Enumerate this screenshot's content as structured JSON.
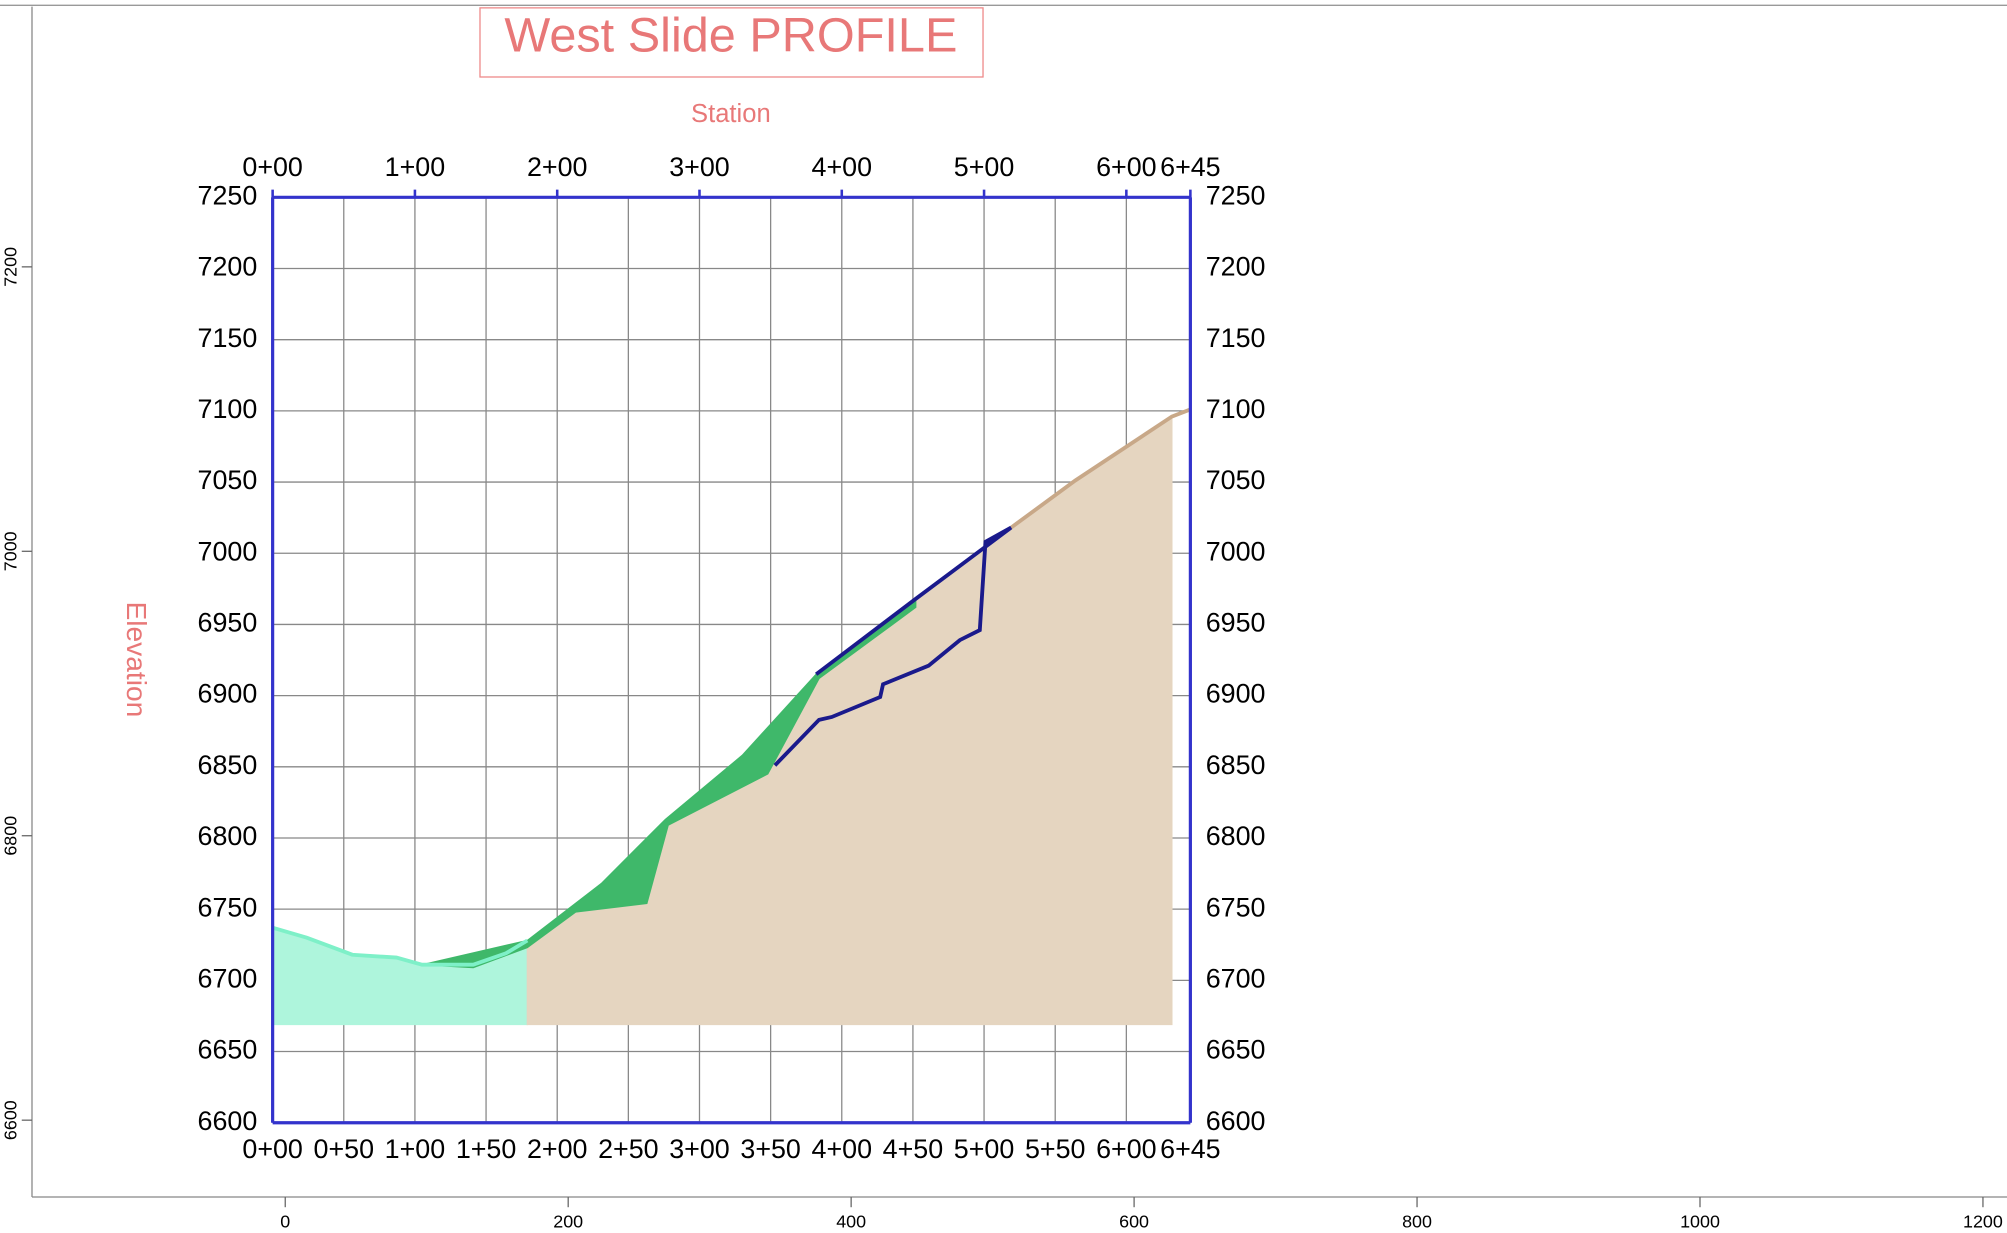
{
  "chart_data": {
    "type": "profile",
    "title": "West Slide PROFILE",
    "x_label": "Station",
    "y_label": "Elevation",
    "xlim": [
      0,
      645
    ],
    "ylim": [
      6600,
      7250
    ],
    "grid": true,
    "xticks": [
      {
        "value": 0,
        "label": "0+00"
      },
      {
        "value": 50,
        "label": "0+50"
      },
      {
        "value": 100,
        "label": "1+00"
      },
      {
        "value": 150,
        "label": "1+50"
      },
      {
        "value": 200,
        "label": "2+00"
      },
      {
        "value": 250,
        "label": "2+50"
      },
      {
        "value": 300,
        "label": "3+00"
      },
      {
        "value": 350,
        "label": "3+50"
      },
      {
        "value": 400,
        "label": "4+00"
      },
      {
        "value": 450,
        "label": "4+50"
      },
      {
        "value": 500,
        "label": "5+00"
      },
      {
        "value": 550,
        "label": "5+50"
      },
      {
        "value": 600,
        "label": "6+00"
      },
      {
        "value": 645,
        "label": "6+45"
      }
    ],
    "xticks_top": [
      {
        "value": 0,
        "label": "0+00"
      },
      {
        "value": 100,
        "label": "1+00"
      },
      {
        "value": 200,
        "label": "2+00"
      },
      {
        "value": 300,
        "label": "3+00"
      },
      {
        "value": 400,
        "label": "4+00"
      },
      {
        "value": 500,
        "label": "5+00"
      },
      {
        "value": 600,
        "label": "6+00"
      },
      {
        "value": 645,
        "label": "6+45"
      }
    ],
    "yticks": [
      6600,
      6650,
      6700,
      6750,
      6800,
      6850,
      6900,
      6950,
      7000,
      7050,
      7100,
      7150,
      7200,
      7250
    ],
    "series": [
      {
        "style": "polygon",
        "color": "#aef5dc",
        "x": [
          0,
          24,
          56,
          87,
          105,
          141,
          164,
          179,
          179,
          0
        ],
        "values": [
          6737,
          6730,
          6718,
          6716,
          6711,
          6711,
          6719,
          6728,
          6669,
          6669
        ]
      },
      {
        "style": "polygon",
        "color": "#e5d5c0",
        "x": [
          179,
          213,
          263,
          278,
          348,
          384,
          452,
          519,
          564,
          632,
          632,
          179
        ],
        "values": [
          6728,
          6748,
          6754,
          6809,
          6845,
          6912,
          6968,
          7018,
          7051,
          7096,
          6669,
          6669
        ]
      },
      {
        "style": "polygon",
        "color": "#3fb86a",
        "x": [
          105,
          179,
          231,
          276,
          330,
          382,
          452,
          452,
          384,
          348,
          278,
          263,
          213,
          179,
          141
        ],
        "values": [
          6711,
          6728,
          6768,
          6813,
          6858,
          6915,
          6968,
          6962,
          6912,
          6845,
          6809,
          6754,
          6748,
          6723,
          6709
        ]
      },
      {
        "style": "line",
        "color": "#c8a888",
        "x": [
          519,
          564,
          632,
          645
        ],
        "values": [
          7018,
          7051,
          7096,
          7101
        ]
      },
      {
        "style": "line",
        "color": "#7ef0c8",
        "x": [
          0,
          24,
          56,
          87,
          105,
          141,
          164,
          179
        ],
        "values": [
          6737,
          6730,
          6718,
          6716,
          6711,
          6711,
          6719,
          6728
        ]
      },
      {
        "style": "line",
        "color": "#1a1a8c",
        "x": [
          382,
          452,
          519,
          501,
          497,
          483,
          461,
          429,
          427,
          393,
          384,
          353
        ],
        "values": [
          6915,
          6968,
          7018,
          7008,
          6946,
          6939,
          6921,
          6908,
          6899,
          6885,
          6883,
          6851
        ]
      }
    ],
    "ruler": {
      "xlim": [
        -179,
        1217
      ],
      "ylim": [
        6546,
        7383
      ],
      "xticks": [
        0,
        200,
        400,
        600,
        800,
        1000,
        1200
      ],
      "yticks": [
        6600,
        6800,
        7000,
        7200
      ]
    }
  }
}
